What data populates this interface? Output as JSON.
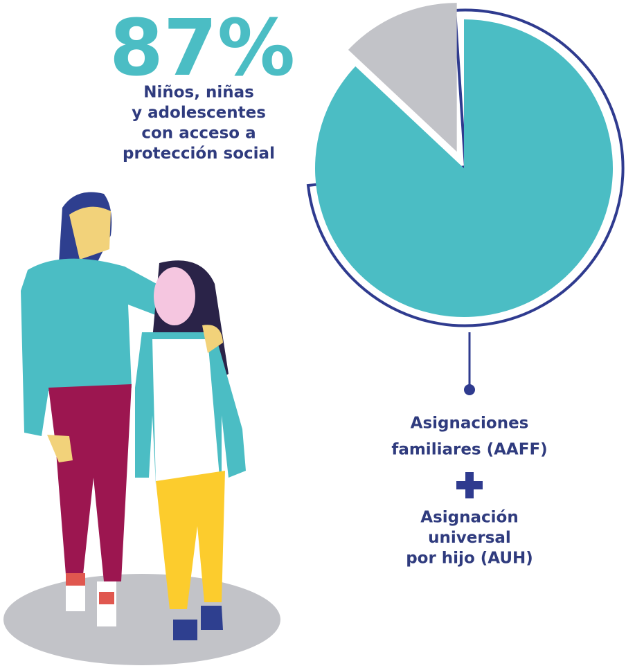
{
  "chart_data": {
    "type": "pie",
    "values": [
      87,
      13
    ],
    "value_labels": [
      "87%",
      null
    ],
    "colors": [
      "#4bbdc4",
      "#c2c3c8"
    ],
    "annotations": {
      "headline": [
        "Niños, niñas",
        "y adolescentes",
        "con acceso a",
        "protección social"
      ],
      "program_1": [
        "Asignaciones",
        "familiares (AAFF)"
      ],
      "program_2": [
        "Asignación",
        "universal",
        "por hijo (AUH)"
      ]
    }
  }
}
